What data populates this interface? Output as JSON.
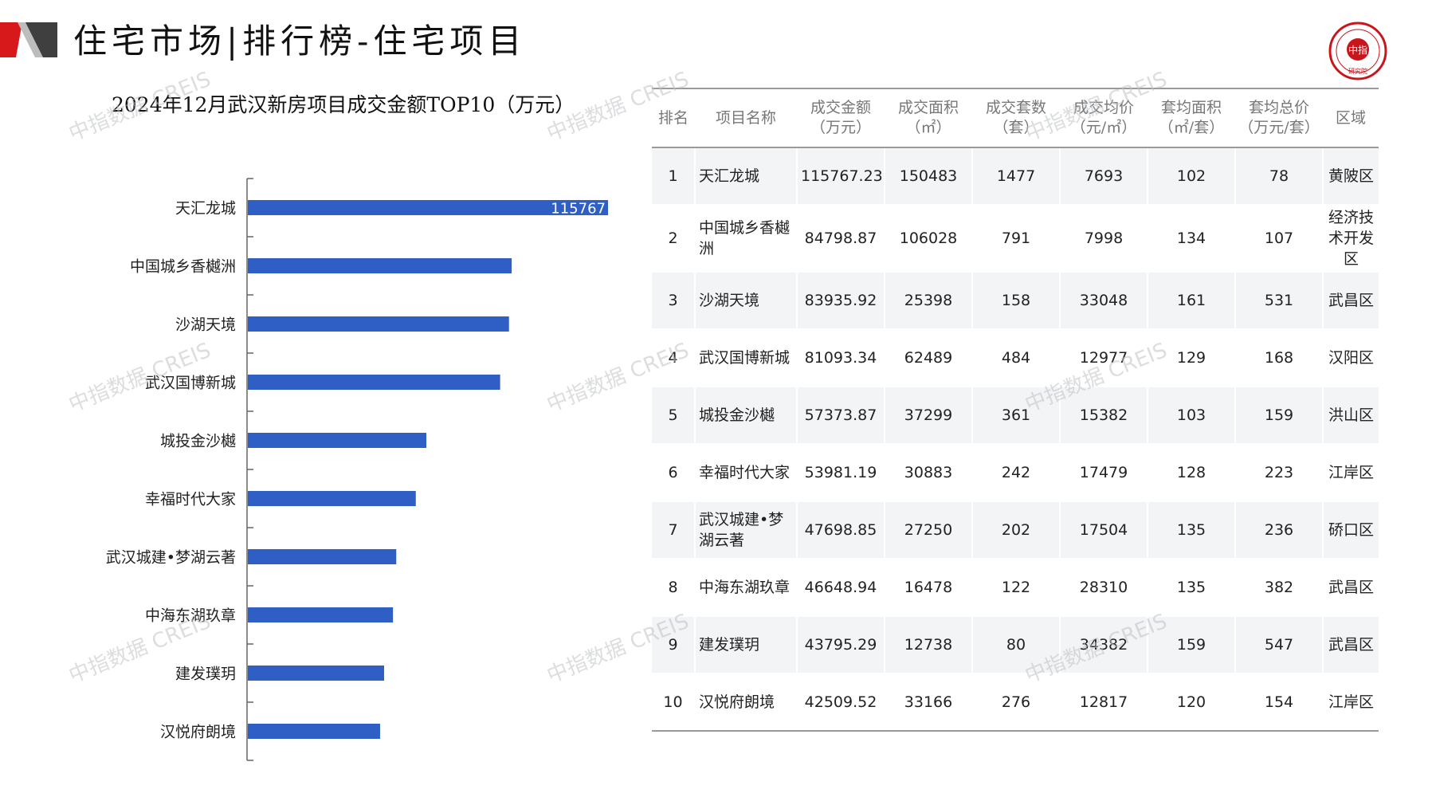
{
  "header": {
    "title": "住宅市场|排行榜-住宅项目",
    "logo_icon": "red-chevron-logo-icon",
    "seal_icon": "china-index-academy-seal-icon",
    "accent_color": "#d7191c"
  },
  "watermark": "中指数据 CREIS",
  "chart_data": {
    "type": "bar",
    "orientation": "horizontal",
    "title": "2024年12月武汉新房项目成交金额TOP10（万元）",
    "categories": [
      "天汇龙城",
      "中国城乡香樾洲",
      "沙湖天境",
      "武汉国博新城",
      "城投金沙樾",
      "幸福时代大家",
      "武汉城建•梦湖云著",
      "中海东湖玖章",
      "建发璞玥",
      "汉悦府朗境"
    ],
    "values": [
      115767.23,
      84798.87,
      83935.92,
      81093.34,
      57373.87,
      53981.19,
      47698.85,
      46648.94,
      43795.29,
      42509.52
    ],
    "data_labels": [
      "115767",
      "",
      "",
      "",
      "",
      "",
      "",
      "",
      "",
      ""
    ],
    "xlim": [
      0,
      115767.23
    ],
    "bar_color": "#2f5ec4",
    "grid": false,
    "legend": "none"
  },
  "table": {
    "headers": [
      [
        "排名",
        ""
      ],
      [
        "项目名称",
        ""
      ],
      [
        "成交金额",
        "（万元）"
      ],
      [
        "成交面积",
        "（㎡）"
      ],
      [
        "成交套数",
        "（套）"
      ],
      [
        "成交均价",
        "（元/㎡）"
      ],
      [
        "套均面积",
        "（㎡/套）"
      ],
      [
        "套均总价",
        "（万元/套）"
      ],
      [
        "区域",
        ""
      ]
    ],
    "rows": [
      [
        "1",
        "天汇龙城",
        "115767.23",
        "150483",
        "1477",
        "7693",
        "102",
        "78",
        "黄陂区"
      ],
      [
        "2",
        "中国城乡香樾洲",
        "84798.87",
        "106028",
        "791",
        "7998",
        "134",
        "107",
        "经济技术开发区"
      ],
      [
        "3",
        "沙湖天境",
        "83935.92",
        "25398",
        "158",
        "33048",
        "161",
        "531",
        "武昌区"
      ],
      [
        "4",
        "武汉国博新城",
        "81093.34",
        "62489",
        "484",
        "12977",
        "129",
        "168",
        "汉阳区"
      ],
      [
        "5",
        "城投金沙樾",
        "57373.87",
        "37299",
        "361",
        "15382",
        "103",
        "159",
        "洪山区"
      ],
      [
        "6",
        "幸福时代大家",
        "53981.19",
        "30883",
        "242",
        "17479",
        "128",
        "223",
        "江岸区"
      ],
      [
        "7",
        "武汉城建•梦湖云著",
        "47698.85",
        "27250",
        "202",
        "17504",
        "135",
        "236",
        "硚口区"
      ],
      [
        "8",
        "中海东湖玖章",
        "46648.94",
        "16478",
        "122",
        "28310",
        "135",
        "382",
        "武昌区"
      ],
      [
        "9",
        "建发璞玥",
        "43795.29",
        "12738",
        "80",
        "34382",
        "159",
        "547",
        "武昌区"
      ],
      [
        "10",
        "汉悦府朗境",
        "42509.52",
        "33166",
        "276",
        "12817",
        "120",
        "154",
        "江岸区"
      ]
    ]
  }
}
